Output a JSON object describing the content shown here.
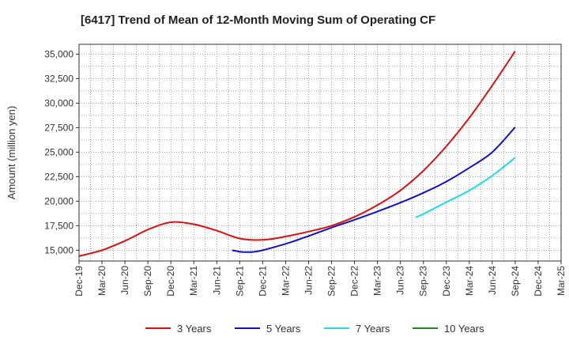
{
  "chart_data": {
    "type": "line",
    "title": "[6417]  Trend of Mean of 12-Month Moving Sum of Operating CF",
    "xlabel": "",
    "ylabel": "Amount (million yen)",
    "ylim": [
      13900,
      36000
    ],
    "yticks": [
      15000,
      17500,
      20000,
      22500,
      25000,
      27500,
      30000,
      32500,
      35000
    ],
    "ytick_labels": [
      "15,000",
      "17,500",
      "20,000",
      "22,500",
      "25,000",
      "27,500",
      "30,000",
      "32,500",
      "35,000"
    ],
    "x_categories": [
      "Dec-19",
      "Mar-20",
      "Jun-20",
      "Sep-20",
      "Dec-20",
      "Mar-21",
      "Jun-21",
      "Sep-21",
      "Dec-21",
      "Mar-22",
      "Jun-22",
      "Sep-22",
      "Dec-22",
      "Mar-23",
      "Jun-23",
      "Sep-23",
      "Dec-23",
      "Mar-24",
      "Jun-24",
      "Sep-24",
      "Dec-24",
      "Mar-25"
    ],
    "grid": true,
    "legend_position": "bottom",
    "series": [
      {
        "name": "3 Years",
        "color": "#dd1111",
        "points": [
          [
            0,
            14400
          ],
          [
            1,
            15000
          ],
          [
            2,
            15950
          ],
          [
            3,
            17100
          ],
          [
            4,
            17850
          ],
          [
            5,
            17650
          ],
          [
            6,
            17000
          ],
          [
            7,
            16200
          ],
          [
            8,
            16050
          ],
          [
            9,
            16400
          ],
          [
            10,
            16900
          ],
          [
            11,
            17500
          ],
          [
            12,
            18400
          ],
          [
            13,
            19600
          ],
          [
            14,
            21100
          ],
          [
            15,
            23100
          ],
          [
            16,
            25600
          ],
          [
            17,
            28500
          ],
          [
            18,
            31800
          ],
          [
            19,
            35300
          ]
        ]
      },
      {
        "name": "5 Years",
        "color": "#1111cc",
        "points": [
          [
            6.667,
            15000
          ],
          [
            7,
            14850
          ],
          [
            7.333,
            14800
          ],
          [
            7.667,
            14850
          ],
          [
            8,
            15000
          ],
          [
            9,
            15650
          ],
          [
            10,
            16450
          ],
          [
            11,
            17300
          ],
          [
            12,
            18100
          ],
          [
            13,
            18950
          ],
          [
            14,
            19850
          ],
          [
            15,
            20850
          ],
          [
            16,
            22000
          ],
          [
            17,
            23400
          ],
          [
            18,
            25000
          ],
          [
            19,
            27550
          ]
        ]
      },
      {
        "name": "7 Years",
        "color": "#22dddd",
        "points": [
          [
            14.667,
            18350
          ],
          [
            15,
            18700
          ],
          [
            16,
            19900
          ],
          [
            17,
            21100
          ],
          [
            18,
            22600
          ],
          [
            19,
            24450
          ]
        ]
      },
      {
        "name": "10 Years",
        "color": "#228822",
        "points": []
      }
    ]
  }
}
